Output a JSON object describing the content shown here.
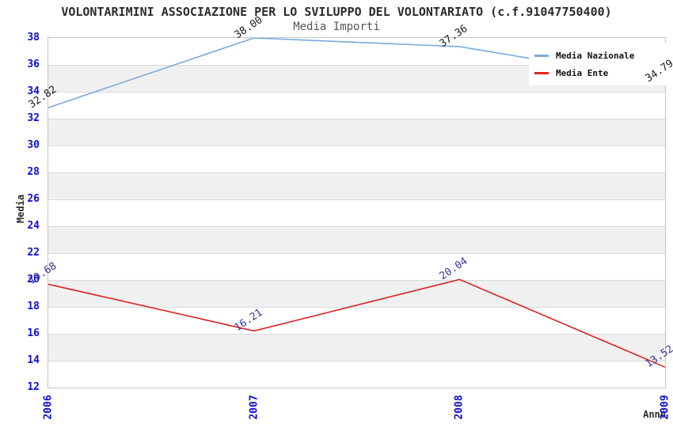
{
  "title": "VOLONTARIMINI ASSOCIAZIONE PER LO SVILUPPO DEL VOLONTARIATO (c.f.91047750400)",
  "subtitle": "Media Importi",
  "chart_data": {
    "type": "line",
    "title": "VOLONTARIMINI ASSOCIAZIONE PER LO SVILUPPO DEL VOLONTARIATO (c.f.91047750400)",
    "subtitle": "Media Importi",
    "xlabel": "Anno",
    "ylabel": "Media",
    "categories": [
      "2006",
      "2007",
      "2008",
      "2009"
    ],
    "series": [
      {
        "name": "Media Nazionale",
        "color": "#7aaade",
        "label_color": "#1a1a1a",
        "values": [
          32.82,
          38.0,
          37.36,
          34.79
        ]
      },
      {
        "name": "Media Ente",
        "color": "#e02222",
        "label_color": "#333399",
        "values": [
          19.68,
          16.21,
          20.04,
          13.52
        ]
      }
    ],
    "ylim": [
      12,
      38
    ],
    "yticks": [
      12,
      14,
      16,
      18,
      20,
      22,
      24,
      26,
      28,
      30,
      32,
      34,
      36,
      38
    ],
    "grid": true,
    "band_colors": [
      "#ffffff",
      "#f0f0f0"
    ],
    "tick_color": "#0d0dcf",
    "legend_position": "top-right",
    "legend_entries": [
      "Media Nazionale",
      "Media Ente"
    ]
  }
}
